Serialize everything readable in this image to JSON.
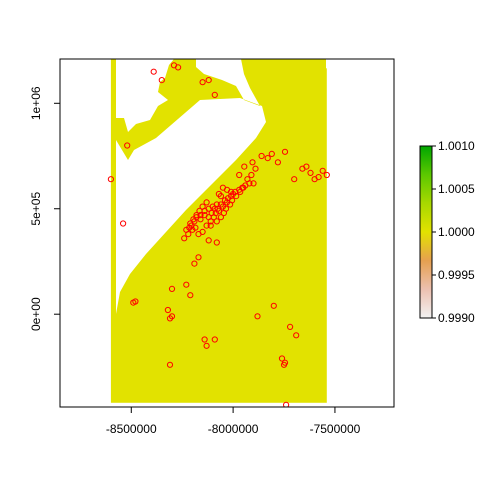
{
  "chart_data": {
    "type": "scatter",
    "title": "",
    "xlabel": "",
    "ylabel": "",
    "xlim": [
      -8850000,
      -7210000
    ],
    "ylim": [
      -440000,
      1210000
    ],
    "x_ticks": [
      -8500000,
      -8000000,
      -7500000
    ],
    "x_tick_labels": [
      "-8500000",
      "-8000000",
      "-7500000"
    ],
    "y_ticks": [
      0,
      500000,
      1000000
    ],
    "y_tick_labels": [
      "0e+00",
      "5e+05",
      "1e+06"
    ],
    "raster": {
      "fill_color": "#e2e200",
      "extent_x": [
        -8600000,
        -7540000
      ],
      "extent_y": [
        -420000,
        1210000
      ],
      "value_everywhere": 1.0,
      "no_data_region": "white land-shaped hole along the upper-left edge of the raster"
    },
    "colorbar": {
      "range": [
        0.999,
        1.001
      ],
      "tick_values": [
        0.999,
        0.9995,
        1.0,
        1.0005,
        1.001
      ],
      "tick_labels": [
        "0.9990",
        "0.9995",
        "1.0000",
        "1.0005",
        "1.0010"
      ],
      "colors": [
        "#f2f2f2",
        "#ecc0b0",
        "#e6a050",
        "#e2e200",
        "#a8d800",
        "#5cc800",
        "#00a600"
      ]
    },
    "points": {
      "marker": "open circle",
      "color": "#ff0000",
      "x": [
        -8290000,
        -8270000,
        -8150000,
        -8120000,
        -8350000,
        -8390000,
        -8090000,
        -8520000,
        -8600000,
        -8540000,
        -8480000,
        -7970000,
        -7945000,
        -7905000,
        -7890000,
        -7860000,
        -7830000,
        -7810000,
        -7780000,
        -7745000,
        -7700000,
        -7660000,
        -7640000,
        -7620000,
        -7600000,
        -7580000,
        -7560000,
        -7540000,
        -7900000,
        -8010000,
        -8030000,
        -8050000,
        -8060000,
        -8070000,
        -8080000,
        -8100000,
        -8120000,
        -8140000,
        -8160000,
        -8180000,
        -8190000,
        -8205000,
        -8215000,
        -8170000,
        -8150000,
        -8130000,
        -8110000,
        -8095000,
        -8085000,
        -8075000,
        -8060000,
        -8040000,
        -8025000,
        -8010000,
        -8000000,
        -7990000,
        -7970000,
        -7955000,
        -7940000,
        -7920000,
        -8230000,
        -8210000,
        -8195000,
        -8180000,
        -8165000,
        -8150000,
        -8130000,
        -8120000,
        -8105000,
        -8090000,
        -8070000,
        -8050000,
        -8030000,
        -8220000,
        -8200000,
        -8185000,
        -8160000,
        -8140000,
        -8110000,
        -8080000,
        -8060000,
        -8045000,
        -8035000,
        -8015000,
        -8005000,
        -7985000,
        -7965000,
        -7950000,
        -7930000,
        -7910000,
        -8240000,
        -8120000,
        -8080000,
        -8170000,
        -8190000,
        -8300000,
        -8230000,
        -8210000,
        -8320000,
        -8310000,
        -8300000,
        -8140000,
        -8130000,
        -8090000,
        -7880000,
        -7800000,
        -7760000,
        -7750000,
        -7745000,
        -7740000,
        -7720000,
        -7690000,
        -8490000,
        -8310000
      ],
      "y": [
        1180000,
        1170000,
        1100000,
        1110000,
        1110000,
        1150000,
        1040000,
        800000,
        640000,
        430000,
        60000,
        660000,
        700000,
        720000,
        690000,
        750000,
        740000,
        760000,
        720000,
        770000,
        640000,
        690000,
        700000,
        670000,
        640000,
        650000,
        680000,
        660000,
        620000,
        580000,
        590000,
        600000,
        560000,
        570000,
        520000,
        510000,
        500000,
        490000,
        470000,
        460000,
        440000,
        420000,
        410000,
        380000,
        390000,
        420000,
        440000,
        460000,
        480000,
        500000,
        520000,
        540000,
        550000,
        560000,
        570000,
        580000,
        590000,
        600000,
        610000,
        620000,
        400000,
        430000,
        450000,
        470000,
        490000,
        510000,
        530000,
        460000,
        480000,
        500000,
        490000,
        510000,
        530000,
        380000,
        400000,
        410000,
        450000,
        470000,
        420000,
        440000,
        460000,
        480000,
        500000,
        520000,
        540000,
        560000,
        580000,
        600000,
        640000,
        660000,
        360000,
        350000,
        340000,
        270000,
        240000,
        120000,
        140000,
        90000,
        20000,
        -20000,
        -10000,
        -120000,
        -150000,
        -120000,
        -10000,
        40000,
        -210000,
        -240000,
        -230000,
        -430000,
        -60000,
        -100000,
        55000,
        -240000
      ]
    }
  }
}
